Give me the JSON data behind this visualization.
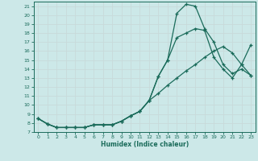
{
  "xlabel": "Humidex (Indice chaleur)",
  "bg_color": "#cce8e8",
  "grid_color": "#c8dada",
  "line_color": "#1a6b5a",
  "xlim": [
    -0.5,
    23.5
  ],
  "ylim": [
    7,
    21.5
  ],
  "xticks": [
    0,
    1,
    2,
    3,
    4,
    5,
    6,
    7,
    8,
    9,
    10,
    11,
    12,
    13,
    14,
    15,
    16,
    17,
    18,
    19,
    20,
    21,
    22,
    23
  ],
  "yticks": [
    7,
    8,
    9,
    10,
    11,
    12,
    13,
    14,
    15,
    16,
    17,
    18,
    19,
    20,
    21
  ],
  "line1_x": [
    0,
    1,
    2,
    3,
    4,
    5,
    6,
    7,
    8,
    9,
    10,
    11,
    12,
    13,
    14,
    15,
    16,
    17,
    18,
    19,
    20,
    21,
    22,
    23
  ],
  "line1_y": [
    8.5,
    7.9,
    7.5,
    7.5,
    7.5,
    7.5,
    7.8,
    7.8,
    7.8,
    8.2,
    8.8,
    9.3,
    10.5,
    13.2,
    15.0,
    20.2,
    21.2,
    21.0,
    18.5,
    17.0,
    14.5,
    13.5,
    14.0,
    13.3
  ],
  "line2_x": [
    0,
    1,
    2,
    3,
    4,
    5,
    6,
    7,
    8,
    9,
    10,
    11,
    12,
    13,
    14,
    15,
    16,
    17,
    18,
    19,
    20,
    21,
    22,
    23
  ],
  "line2_y": [
    8.5,
    7.9,
    7.5,
    7.5,
    7.5,
    7.5,
    7.8,
    7.8,
    7.8,
    8.2,
    8.8,
    9.3,
    10.5,
    13.2,
    15.0,
    17.5,
    18.0,
    18.5,
    18.3,
    15.3,
    14.0,
    13.0,
    14.5,
    16.7
  ],
  "line3_x": [
    0,
    1,
    2,
    3,
    4,
    5,
    6,
    7,
    8,
    9,
    10,
    11,
    12,
    13,
    14,
    15,
    16,
    17,
    18,
    19,
    20,
    21,
    22,
    23
  ],
  "line3_y": [
    8.5,
    7.9,
    7.5,
    7.5,
    7.5,
    7.5,
    7.8,
    7.8,
    7.8,
    8.2,
    8.8,
    9.3,
    10.5,
    11.3,
    12.2,
    13.0,
    13.8,
    14.5,
    15.3,
    16.0,
    16.5,
    15.8,
    14.5,
    13.3
  ]
}
